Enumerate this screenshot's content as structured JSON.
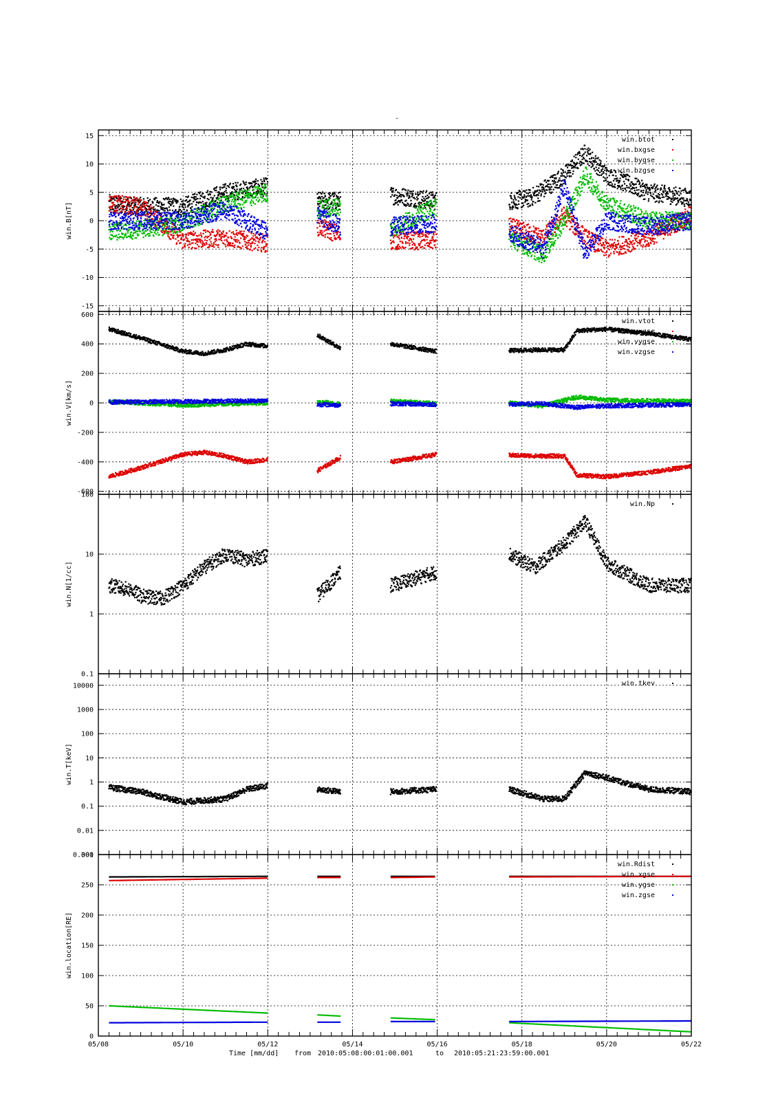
{
  "title": "-",
  "footer": {
    "xlabel": "Time [mm/dd]",
    "from_label": "from",
    "from_value": "2010:05:08:00:01:00.001",
    "to_label": "to",
    "to_value": "2010:05:21:23:59:00.001"
  },
  "x_ticks": [
    "05/08",
    "05/10",
    "05/12",
    "05/14",
    "05/16",
    "05/18",
    "05/20",
    "05/22"
  ],
  "data_intervals": [
    [
      0.25,
      4.0
    ],
    [
      5.17,
      5.72
    ],
    [
      6.9,
      7.98
    ],
    [
      9.7,
      14.0
    ]
  ],
  "chart_data": [
    {
      "type": "scatter",
      "ylabel": "win.B[nT]",
      "ylim": [
        -16,
        16
      ],
      "yticks": [
        15,
        10,
        5,
        0,
        -5,
        -10,
        -15
      ],
      "ytick_labels": [
        "15",
        "10",
        "5",
        "0",
        "-5",
        "-10",
        "-15"
      ],
      "legend_position": "top-right",
      "grid": true,
      "series": [
        {
          "name": "win.btot",
          "color": "#000000",
          "x": [
            0.25,
            1.0,
            2.0,
            3.0,
            4.0,
            5.17,
            5.72,
            6.9,
            7.98,
            9.7,
            10.2,
            11.0,
            11.5,
            12.0,
            13.0,
            14.0
          ],
          "y": [
            3,
            2.5,
            2.5,
            5,
            6,
            3.5,
            3.5,
            4.5,
            3.5,
            3.5,
            4,
            8,
            12,
            8,
            5,
            4
          ]
        },
        {
          "name": "win.bxgse",
          "color": "#dd0000",
          "x": [
            0.25,
            1.0,
            2.0,
            3.0,
            4.0,
            5.17,
            5.72,
            6.9,
            7.98,
            9.7,
            10.5,
            11.0,
            11.5,
            12.0,
            13.0,
            14.0
          ],
          "y": [
            3,
            2.5,
            -3.5,
            -3,
            -4,
            -1,
            -2.5,
            -3.5,
            -3.5,
            -1,
            -3,
            1,
            -3,
            -5,
            -3,
            1
          ]
        },
        {
          "name": "win.bygse",
          "color": "#00bb00",
          "x": [
            0.25,
            1.0,
            2.0,
            3.0,
            4.0,
            5.17,
            5.72,
            6.9,
            7.98,
            9.7,
            10.5,
            11.0,
            11.5,
            12.0,
            13.0,
            14.0
          ],
          "y": [
            -2,
            -1.5,
            -0.5,
            3,
            5,
            2,
            2.5,
            -1.5,
            2.5,
            -3,
            -6,
            0,
            8,
            3,
            0,
            0
          ]
        },
        {
          "name": "win.bzgse",
          "color": "#0000dd",
          "x": [
            0.25,
            1.0,
            2.0,
            3.0,
            4.0,
            5.17,
            5.72,
            6.9,
            7.98,
            9.7,
            10.5,
            11.0,
            11.5,
            12.0,
            13.0,
            14.0
          ],
          "y": [
            0,
            0,
            0,
            2,
            -2,
            1,
            -1,
            -1,
            -0.5,
            -2,
            -5,
            6,
            -6,
            0,
            -1,
            0
          ]
        }
      ]
    },
    {
      "type": "scatter",
      "ylabel": "win.V[km/s]",
      "ylim": [
        -620,
        620
      ],
      "yticks": [
        600,
        400,
        200,
        0,
        -200,
        -400,
        -600
      ],
      "ytick_labels": [
        "600",
        "400",
        "200",
        "0",
        "-200",
        "-400",
        "-600"
      ],
      "legend_position": "top-right",
      "grid": true,
      "series": [
        {
          "name": "win.vtot",
          "color": "#000000",
          "x": [
            0.25,
            1.0,
            2.0,
            2.5,
            3.0,
            3.5,
            4.0,
            5.17,
            5.72,
            6.9,
            7.98,
            9.7,
            10.5,
            11.0,
            11.3,
            12.0,
            13.0,
            14.0
          ],
          "y": [
            500,
            440,
            350,
            335,
            360,
            400,
            385,
            460,
            370,
            400,
            350,
            355,
            360,
            360,
            490,
            500,
            470,
            430
          ]
        },
        {
          "name": "win.vxgse",
          "color": "#dd0000",
          "x": [
            0.25,
            1.0,
            2.0,
            2.5,
            3.0,
            3.5,
            4.0,
            5.17,
            5.72,
            6.9,
            7.98,
            9.7,
            10.5,
            11.0,
            11.3,
            12.0,
            13.0,
            14.0
          ],
          "y": [
            -500,
            -440,
            -350,
            -335,
            -360,
            -400,
            -385,
            -460,
            -370,
            -400,
            -350,
            -355,
            -360,
            -360,
            -490,
            -500,
            -470,
            -430
          ]
        },
        {
          "name": "win.vygse",
          "color": "#00bb00",
          "x": [
            0.25,
            2.0,
            4.0,
            5.17,
            5.72,
            6.9,
            7.98,
            9.7,
            10.5,
            11.3,
            12.0,
            14.0
          ],
          "y": [
            10,
            -15,
            0,
            10,
            -10,
            15,
            -5,
            0,
            -20,
            40,
            20,
            10
          ]
        },
        {
          "name": "win.vzgse",
          "color": "#0000dd",
          "x": [
            0.25,
            2.0,
            4.0,
            5.17,
            5.72,
            6.9,
            7.98,
            9.7,
            10.5,
            11.3,
            12.0,
            14.0
          ],
          "y": [
            5,
            10,
            15,
            -10,
            -15,
            -5,
            -10,
            -10,
            -5,
            -30,
            -20,
            -10
          ]
        }
      ]
    },
    {
      "type": "scatter",
      "ylabel": "win.N[1/cc]",
      "yscale": "log",
      "ylim": [
        0.1,
        100
      ],
      "yticks": [
        100,
        10,
        1,
        0.1
      ],
      "ytick_labels": [
        "100",
        "10",
        "1",
        "0.1"
      ],
      "legend_position": "top-right",
      "grid": true,
      "series": [
        {
          "name": "win.Np",
          "color": "#000000",
          "x": [
            0.25,
            0.8,
            1.0,
            1.5,
            2.0,
            2.5,
            3.0,
            3.5,
            4.0,
            5.17,
            5.72,
            6.9,
            7.98,
            9.7,
            10.3,
            11.0,
            11.5,
            12.0,
            13.0,
            14.0
          ],
          "y": [
            3,
            2.5,
            2.0,
            1.8,
            3,
            6,
            10,
            8,
            9.5,
            2,
            5,
            3,
            5,
            10,
            6,
            15,
            35,
            7,
            3,
            3
          ]
        }
      ]
    },
    {
      "type": "scatter",
      "ylabel": "win.T[keV]",
      "yscale": "log",
      "ylim": [
        0.001,
        30000
      ],
      "yticks": [
        10000,
        1000,
        100,
        10,
        1,
        0.1,
        0.01,
        0.001
      ],
      "ytick_labels": [
        "10000",
        "1000",
        "100",
        "10",
        "1",
        "0.1",
        "0.01",
        "0.001"
      ],
      "legend_position": "top-right",
      "grid": true,
      "series": [
        {
          "name": "win.tkev",
          "color": "#000000",
          "x": [
            0.25,
            1.0,
            2.0,
            3.0,
            3.5,
            4.0,
            5.17,
            5.72,
            6.9,
            7.98,
            9.7,
            10.5,
            11.0,
            11.5,
            12.0,
            13.0,
            14.0
          ],
          "y": [
            0.6,
            0.4,
            0.15,
            0.2,
            0.5,
            0.7,
            0.5,
            0.4,
            0.4,
            0.5,
            0.5,
            0.2,
            0.2,
            2.5,
            1.5,
            0.5,
            0.4
          ]
        }
      ]
    },
    {
      "type": "line",
      "ylabel": "win.location[RE]",
      "ylim": [
        0,
        300
      ],
      "yticks": [
        300,
        250,
        200,
        150,
        100,
        50,
        0
      ],
      "ytick_labels": [
        "300",
        "250",
        "200",
        "150",
        "100",
        "50",
        "0"
      ],
      "legend_position": "top-right",
      "grid": true,
      "series": [
        {
          "name": "win.Rdist",
          "color": "#000000",
          "x": [
            0.25,
            4.0,
            5.17,
            5.72,
            6.9,
            7.98,
            9.7,
            14.0
          ],
          "y": [
            263,
            264,
            264,
            264,
            264,
            264,
            264,
            264
          ]
        },
        {
          "name": "win.xgse",
          "color": "#dd0000",
          "x": [
            0.25,
            4.0,
            5.17,
            5.72,
            6.9,
            7.98,
            9.7,
            14.0
          ],
          "y": [
            257,
            261,
            262,
            262,
            262,
            263,
            263,
            264
          ]
        },
        {
          "name": "win.ygse",
          "color": "#00bb00",
          "x": [
            0.25,
            4.0,
            5.17,
            5.72,
            6.9,
            7.98,
            9.7,
            14.0
          ],
          "y": [
            50,
            38,
            35,
            33,
            30,
            27,
            22,
            7
          ]
        },
        {
          "name": "win.zgse",
          "color": "#0000dd",
          "x": [
            0.25,
            4.0,
            5.17,
            5.72,
            6.9,
            7.98,
            9.7,
            14.0
          ],
          "y": [
            22,
            23,
            23,
            23,
            24,
            24,
            24,
            25
          ]
        }
      ]
    }
  ]
}
